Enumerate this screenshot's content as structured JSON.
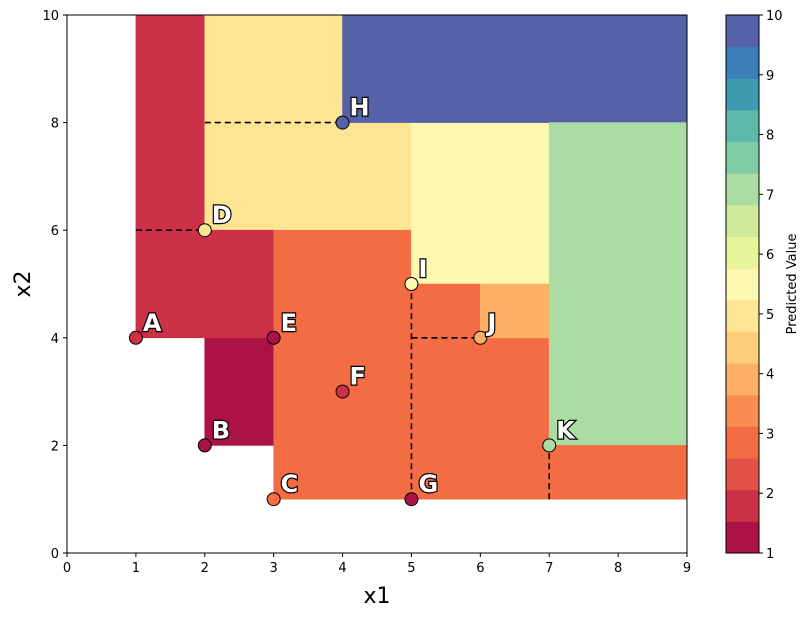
{
  "chart_data": {
    "type": "heatmap",
    "xlabel": "x1",
    "ylabel": "x2",
    "xlim": [
      0,
      9
    ],
    "ylim": [
      0,
      10
    ],
    "x_ticks": [
      "0",
      "1",
      "2",
      "3",
      "4",
      "5",
      "6",
      "7",
      "8",
      "9"
    ],
    "y_ticks": [
      "0",
      "2",
      "4",
      "6",
      "8",
      "10"
    ],
    "grid": false,
    "colorbar": {
      "label": "Predicted Value",
      "range": [
        1,
        10
      ],
      "ticks": [
        "1",
        "2",
        "3",
        "4",
        "5",
        "6",
        "7",
        "8",
        "9",
        "10"
      ],
      "colors": [
        "#ab1245",
        "#cd3148",
        "#e25249",
        "#f26d43",
        "#f98d52",
        "#fdb063",
        "#fdcd7b",
        "#fee593",
        "#fbf8b0",
        "#e8f59b",
        "#cfeb99",
        "#aadca3",
        "#81cca5",
        "#5db9aa",
        "#3f9aaf",
        "#3b7eb8",
        "#5662a8"
      ]
    },
    "regions": [
      {
        "x": [
          1,
          2
        ],
        "y": [
          4,
          10
        ],
        "value": 2.0
      },
      {
        "x": [
          2,
          3
        ],
        "y": [
          2,
          4
        ],
        "value": 1.0
      },
      {
        "x": [
          2,
          4
        ],
        "y": [
          8,
          10
        ],
        "value": 5.0
      },
      {
        "x": [
          2,
          5
        ],
        "y": [
          6,
          8
        ],
        "value": 5.0
      },
      {
        "x": [
          2,
          3
        ],
        "y": [
          4,
          6
        ],
        "value": 2.0
      },
      {
        "x": [
          3,
          5
        ],
        "y": [
          4,
          6
        ],
        "value": 3.0
      },
      {
        "x": [
          3,
          7
        ],
        "y": [
          1,
          4
        ],
        "value": 3.0
      },
      {
        "x": [
          5,
          7
        ],
        "y": [
          5,
          8
        ],
        "value": 5.5
      },
      {
        "x": [
          5,
          6
        ],
        "y": [
          4,
          5
        ],
        "value": 3.0
      },
      {
        "x": [
          6,
          7
        ],
        "y": [
          4,
          5
        ],
        "value": 4.0
      },
      {
        "x": [
          4,
          9
        ],
        "y": [
          8,
          10
        ],
        "value": 10.0
      },
      {
        "x": [
          7,
          9
        ],
        "y": [
          2,
          8
        ],
        "value": 7.0
      },
      {
        "x": [
          7,
          9
        ],
        "y": [
          1,
          2
        ],
        "value": 3.0
      }
    ],
    "points": [
      {
        "label": "A",
        "x": 1,
        "y": 4,
        "value": 2.0
      },
      {
        "label": "B",
        "x": 2,
        "y": 2,
        "value": 1.0
      },
      {
        "label": "C",
        "x": 3,
        "y": 1,
        "value": 3.0
      },
      {
        "label": "D",
        "x": 2,
        "y": 6,
        "value": 5.0
      },
      {
        "label": "E",
        "x": 3,
        "y": 4,
        "value": 1.0
      },
      {
        "label": "F",
        "x": 4,
        "y": 3,
        "value": 2.0
      },
      {
        "label": "G",
        "x": 5,
        "y": 1,
        "value": 1.0
      },
      {
        "label": "H",
        "x": 4,
        "y": 8,
        "value": 10.0
      },
      {
        "label": "I",
        "x": 5,
        "y": 5,
        "value": 5.5
      },
      {
        "label": "J",
        "x": 6,
        "y": 4,
        "value": 4.0
      },
      {
        "label": "K",
        "x": 7,
        "y": 2,
        "value": 7.0
      }
    ],
    "dashed_lines": [
      {
        "x": [
          2,
          4
        ],
        "y": [
          8,
          8
        ]
      },
      {
        "x": [
          1,
          2
        ],
        "y": [
          6,
          6
        ]
      },
      {
        "x": [
          5,
          5
        ],
        "y": [
          1,
          5
        ]
      },
      {
        "x": [
          5,
          6
        ],
        "y": [
          4,
          4
        ]
      },
      {
        "x": [
          7,
          7
        ],
        "y": [
          1,
          2
        ]
      }
    ]
  }
}
